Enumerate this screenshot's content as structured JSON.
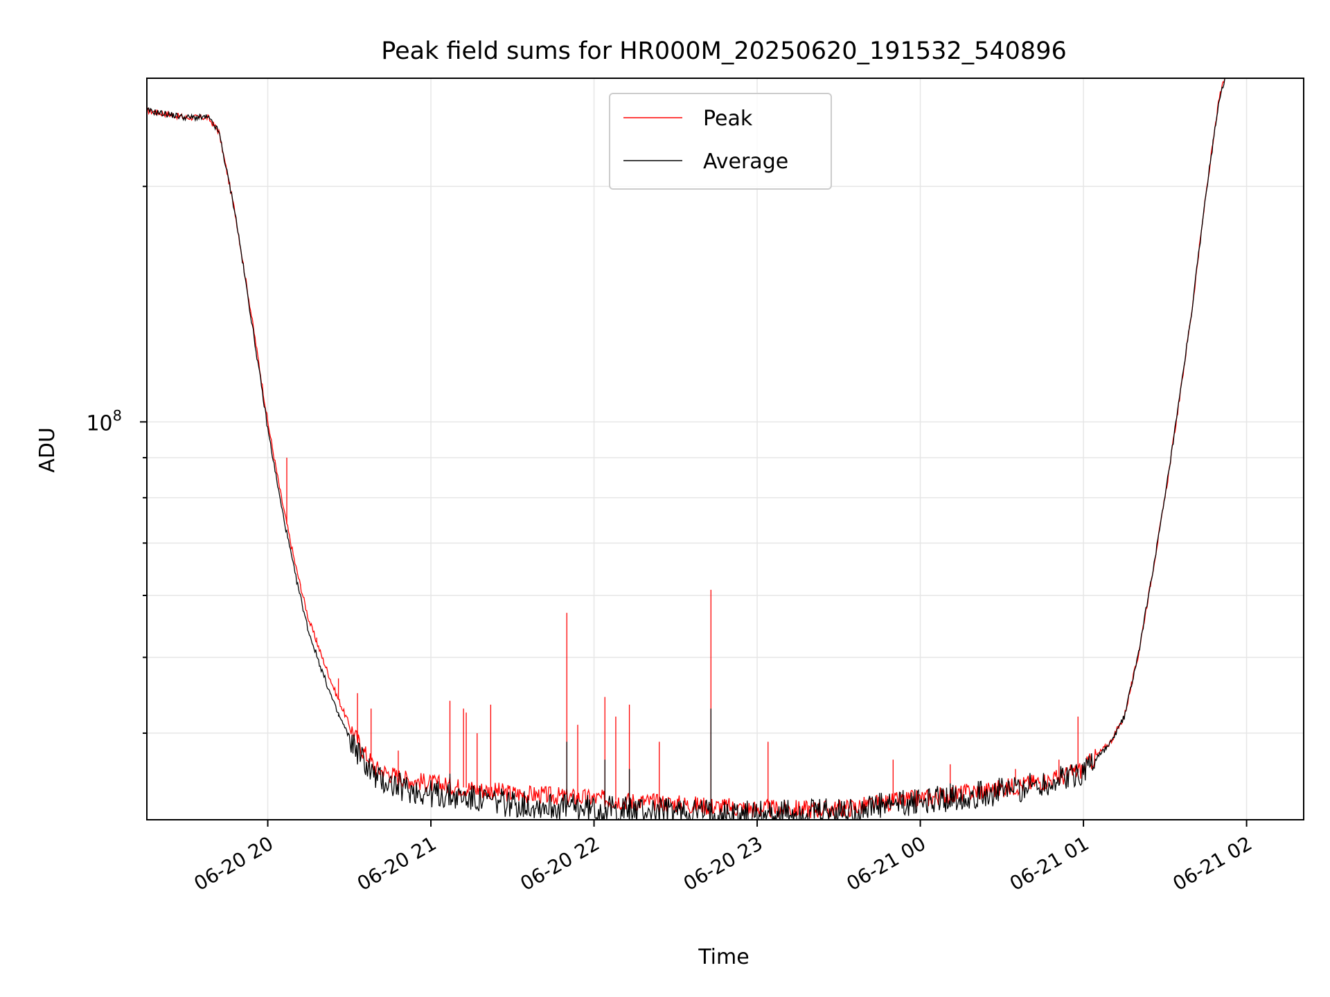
{
  "chart_data": {
    "type": "line",
    "title": "Peak field sums for HR000M_20250620_191532_540896",
    "xlabel": "Time",
    "ylabel": "ADU",
    "yscale": "log",
    "grid": true,
    "legend_position": "upper center",
    "x_ticks": [
      "06-20 20",
      "06-20 21",
      "06-20 22",
      "06-20 23",
      "06-21 00",
      "06-21 01",
      "06-21 02"
    ],
    "y_tick_label": "10^8",
    "xlim": [
      "2025-06-20 19:15:32",
      "2025-06-21 02:21:00"
    ],
    "ylim": [
      31000000.0,
      275000000.0
    ],
    "series": [
      {
        "name": "Peak",
        "color": "#ff0000",
        "points": [
          [
            "2025-06-20 19:15:32",
            250000000.0
          ],
          [
            "2025-06-20 19:30",
            245000000.0
          ],
          [
            "2025-06-20 19:38",
            245000000.0
          ],
          [
            "2025-06-20 19:42",
            235000000.0
          ],
          [
            "2025-06-20 19:48",
            185000000.0
          ],
          [
            "2025-06-20 19:55",
            130000000.0
          ],
          [
            "2025-06-20 20:00",
            100000000.0
          ],
          [
            "2025-06-20 20:05",
            80000000.0
          ],
          [
            "2025-06-20 20:10",
            66000000.0
          ],
          [
            "2025-06-20 20:15",
            56000000.0
          ],
          [
            "2025-06-20 20:20",
            50000000.0
          ],
          [
            "2025-06-20 20:25",
            45000000.0
          ],
          [
            "2025-06-20 20:30",
            41000000.0
          ],
          [
            "2025-06-20 20:35",
            38000000.0
          ],
          [
            "2025-06-20 20:40",
            36000000.0
          ],
          [
            "2025-06-20 20:50",
            35000000.0
          ],
          [
            "2025-06-20 21:00",
            34500000.0
          ],
          [
            "2025-06-20 21:15",
            34000000.0
          ],
          [
            "2025-06-20 21:30",
            33500000.0
          ],
          [
            "2025-06-20 22:00",
            33000000.0
          ],
          [
            "2025-06-20 22:30",
            32500000.0
          ],
          [
            "2025-06-20 23:00",
            32000000.0
          ],
          [
            "2025-06-20 23:30",
            32000000.0
          ],
          [
            "2025-06-21 00:00",
            33000000.0
          ],
          [
            "2025-06-21 00:30",
            34000000.0
          ],
          [
            "2025-06-21 00:50",
            35000000.0
          ],
          [
            "2025-06-21 01:00",
            36000000.0
          ],
          [
            "2025-06-21 01:10",
            39000000.0
          ],
          [
            "2025-06-21 01:15",
            42000000.0
          ],
          [
            "2025-06-21 01:20",
            50000000.0
          ],
          [
            "2025-06-21 01:25",
            63000000.0
          ],
          [
            "2025-06-21 01:30",
            80000000.0
          ],
          [
            "2025-06-21 01:35",
            105000000.0
          ],
          [
            "2025-06-21 01:40",
            140000000.0
          ],
          [
            "2025-06-21 01:45",
            195000000.0
          ],
          [
            "2025-06-21 01:50",
            260000000.0
          ],
          [
            "2025-06-21 01:52",
            275000000.0
          ]
        ],
        "spikes": [
          [
            "2025-06-20 20:07",
            90000000.0
          ],
          [
            "2025-06-20 20:12",
            62000000.0
          ],
          [
            "2025-06-20 20:18",
            53000000.0
          ],
          [
            "2025-06-20 20:26",
            47000000.0
          ],
          [
            "2025-06-20 20:33",
            45000000.0
          ],
          [
            "2025-06-20 20:38",
            43000000.0
          ],
          [
            "2025-06-20 20:48",
            38000000.0
          ],
          [
            "2025-06-20 21:07",
            44000000.0
          ],
          [
            "2025-06-20 21:12",
            43000000.0
          ],
          [
            "2025-06-20 21:13",
            42500000.0
          ],
          [
            "2025-06-20 21:17",
            40000000.0
          ],
          [
            "2025-06-20 21:22",
            43500000.0
          ],
          [
            "2025-06-20 21:50",
            57000000.0
          ],
          [
            "2025-06-20 21:54",
            41000000.0
          ],
          [
            "2025-06-20 22:04",
            44500000.0
          ],
          [
            "2025-06-20 22:08",
            42000000.0
          ],
          [
            "2025-06-20 22:13",
            43500000.0
          ],
          [
            "2025-06-20 22:24",
            39000000.0
          ],
          [
            "2025-06-20 22:43",
            61000000.0
          ],
          [
            "2025-06-20 23:04",
            39000000.0
          ],
          [
            "2025-06-20 23:50",
            37000000.0
          ],
          [
            "2025-06-21 00:11",
            36500000.0
          ],
          [
            "2025-06-21 00:35",
            36000000.0
          ],
          [
            "2025-06-21 00:51",
            37000000.0
          ],
          [
            "2025-06-21 00:58",
            42000000.0
          ]
        ]
      },
      {
        "name": "Average",
        "color": "#000000",
        "points": [
          [
            "2025-06-20 19:15:32",
            250000000.0
          ],
          [
            "2025-06-20 19:30",
            245000000.0
          ],
          [
            "2025-06-20 19:38",
            245000000.0
          ],
          [
            "2025-06-20 19:42",
            235000000.0
          ],
          [
            "2025-06-20 19:48",
            185000000.0
          ],
          [
            "2025-06-20 19:55",
            128000000.0
          ],
          [
            "2025-06-20 20:00",
            98000000.0
          ],
          [
            "2025-06-20 20:05",
            78000000.0
          ],
          [
            "2025-06-20 20:10",
            64000000.0
          ],
          [
            "2025-06-20 20:15",
            54000000.0
          ],
          [
            "2025-06-20 20:20",
            48000000.0
          ],
          [
            "2025-06-20 20:25",
            43000000.0
          ],
          [
            "2025-06-20 20:30",
            39500000.0
          ],
          [
            "2025-06-20 20:35",
            37000000.0
          ],
          [
            "2025-06-20 20:40",
            35000000.0
          ],
          [
            "2025-06-20 20:50",
            34000000.0
          ],
          [
            "2025-06-20 21:00",
            33500000.0
          ],
          [
            "2025-06-20 21:15",
            33000000.0
          ],
          [
            "2025-06-20 21:30",
            32500000.0
          ],
          [
            "2025-06-20 22:00",
            32000000.0
          ],
          [
            "2025-06-20 22:30",
            31800000.0
          ],
          [
            "2025-06-20 23:00",
            31500000.0
          ],
          [
            "2025-06-20 23:30",
            31700000.0
          ],
          [
            "2025-06-21 00:00",
            32700000.0
          ],
          [
            "2025-06-21 00:30",
            33700000.0
          ],
          [
            "2025-06-21 00:50",
            34700000.0
          ],
          [
            "2025-06-21 01:00",
            35800000.0
          ],
          [
            "2025-06-21 01:10",
            38800000.0
          ],
          [
            "2025-06-21 01:15",
            42000000.0
          ],
          [
            "2025-06-21 01:20",
            50000000.0
          ],
          [
            "2025-06-21 01:25",
            63000000.0
          ],
          [
            "2025-06-21 01:30",
            80000000.0
          ],
          [
            "2025-06-21 01:35",
            105000000.0
          ],
          [
            "2025-06-21 01:40",
            140000000.0
          ],
          [
            "2025-06-21 01:45",
            195000000.0
          ],
          [
            "2025-06-21 01:50",
            260000000.0
          ],
          [
            "2025-06-21 01:52",
            275000000.0
          ]
        ],
        "spikes": [
          [
            "2025-06-20 20:26",
            42000000.0
          ],
          [
            "2025-06-20 21:07",
            35500000.0
          ],
          [
            "2025-06-20 21:50",
            39000000.0
          ],
          [
            "2025-06-20 22:04",
            37000000.0
          ],
          [
            "2025-06-20 22:13",
            36000000.0
          ],
          [
            "2025-06-20 22:43",
            43000000.0
          ],
          [
            "2025-06-21 00:11",
            34500000.0
          ],
          [
            "2025-06-21 00:58",
            36000000.0
          ]
        ]
      }
    ]
  }
}
